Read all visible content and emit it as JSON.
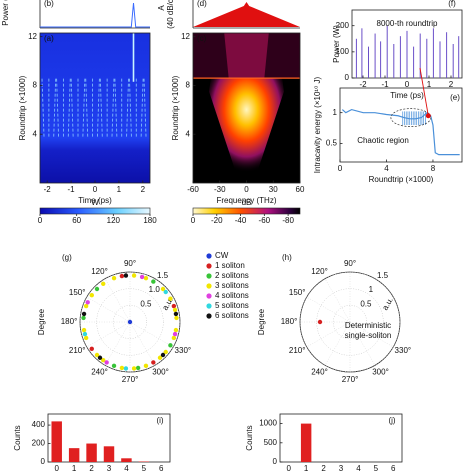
{
  "chart_data": [
    {
      "type": "heatmap",
      "label": "(a)",
      "top_label": "(b)",
      "top_ylabel": "Power (",
      "xlabel": "Time (ps)",
      "ylabel": "Roundtrip (×1000)",
      "xlim": [
        -2.3,
        2.3
      ],
      "xticks": [
        -2,
        -1,
        0,
        1,
        2
      ],
      "ylim": [
        0,
        12.3
      ],
      "yticks": [
        4,
        8,
        12
      ],
      "colorbar": {
        "lim": [
          0,
          180
        ],
        "ticks": [
          0,
          60,
          120,
          180
        ],
        "unit": "W"
      }
    },
    {
      "type": "heatmap",
      "label": "(c)",
      "top_label": "(d)",
      "top_ylabel": "A",
      "top_ylabel2": "(40 dB/c",
      "xlabel": "Frequency (THz)",
      "ylabel": "Roundtrip (×1000)",
      "xlim": [
        -60,
        60
      ],
      "xticks": [
        -60,
        -30,
        0,
        30,
        60
      ],
      "ylim": [
        0,
        12.3
      ],
      "yticks": [
        4,
        8,
        12
      ],
      "colorbar": {
        "lim": [
          0,
          -90
        ],
        "ticks": [
          0,
          -20,
          -40,
          -60,
          -80
        ],
        "unit": "dB"
      }
    },
    {
      "type": "spikes",
      "label": "(f)",
      "annotation": "8000-th roundtrip",
      "xlabel": "Time (ps)",
      "ylabel": "Power (W)",
      "xlim": [
        -2.5,
        2.5
      ],
      "xticks": [
        -2,
        -1,
        0,
        1,
        2
      ],
      "ylim": [
        0,
        260
      ],
      "yticks": [
        0,
        100,
        200
      ],
      "color": "#6a4fc8",
      "x": [
        -2.3,
        -2.05,
        -1.75,
        -1.45,
        -1.2,
        -0.9,
        -0.6,
        -0.3,
        0,
        0.3,
        0.6,
        0.9,
        1.2,
        1.5,
        1.8,
        2.1,
        2.35
      ],
      "values": [
        150,
        190,
        120,
        170,
        140,
        200,
        130,
        160,
        180,
        120,
        170,
        150,
        190,
        140,
        175,
        130,
        160
      ]
    },
    {
      "type": "line",
      "label": "(e)",
      "annotation": "Chaotic region",
      "xlabel": "Roundtrip (×1000)",
      "ylabel": "Intracavity energy (×10¹⁰ J)",
      "xlim": [
        0,
        10.5
      ],
      "xticks": [
        0,
        4,
        8
      ],
      "ylim": [
        0.2,
        1.4
      ],
      "yticks": [
        0.5,
        1
      ],
      "color": "#4a90d9",
      "x": [
        0.2,
        0.5,
        1,
        2,
        3,
        4,
        5,
        5.5,
        6,
        6.5,
        7,
        7.5,
        7.8,
        8,
        8.2,
        8.5,
        10.3
      ],
      "values": [
        1.05,
        1.0,
        1.05,
        1.0,
        1.0,
        0.97,
        0.95,
        0.92,
        0.9,
        0.9,
        0.92,
        1.0,
        0.95,
        0.8,
        0.35,
        0.32,
        0.32
      ]
    },
    {
      "type": "polar",
      "label": "(g)",
      "ylabel": "Degree",
      "runit": "a.u.",
      "rlim": [
        0,
        1.5
      ],
      "rticks": [
        0.5,
        {
          "value": 1,
          "label": "1.0"
        },
        {
          "value": 1.5,
          "label": "1.5"
        }
      ],
      "thetaticks": [
        {
          "value": 90,
          "label": "90°"
        },
        {
          "value": 120,
          "label": "120°"
        },
        {
          "value": 150,
          "label": "150°"
        },
        {
          "value": 180,
          "label": "180°"
        },
        {
          "value": 210,
          "label": "210°"
        },
        {
          "value": 240,
          "label": "240°"
        },
        {
          "value": 270,
          "label": "270°"
        },
        {
          "value": 300,
          "label": "300°"
        },
        {
          "value": 330,
          "label": "330°"
        }
      ],
      "series": [
        {
          "name": "CW",
          "color": "#1f3bd6",
          "theta": [
            0
          ],
          "r": [
            0
          ]
        },
        {
          "name": "1 soliton",
          "color": "#d62020",
          "theta": [
            100,
            215,
            300,
            20
          ],
          "r": [
            1.4,
            1.4,
            1.4,
            1.4
          ]
        },
        {
          "name": "2 solitons",
          "color": "#38c438",
          "theta": [
            135,
            175,
            250,
            330,
            60,
            280
          ],
          "r": [
            1.4,
            1.4,
            1.4,
            1.4,
            1.4,
            1.4
          ]
        },
        {
          "name": "3 solitons",
          "color": "#f2e600",
          "theta": [
            5,
            15,
            30,
            45,
            70,
            85,
            110,
            125,
            145,
            160,
            190,
            200,
            225,
            235,
            260,
            275,
            290,
            310,
            320,
            340,
            350
          ],
          "r": [
            1.4,
            1.4,
            1.4,
            1.4,
            1.4,
            1.4,
            1.4,
            1.4,
            1.4,
            1.4,
            1.4,
            1.4,
            1.4,
            1.4,
            1.4,
            1.4,
            1.4,
            1.4,
            1.4,
            1.4,
            1.4
          ]
        },
        {
          "name": "4 solitons",
          "color": "#e040e0",
          "theta": [
            155,
            240,
            345,
            75
          ],
          "r": [
            1.4,
            1.4,
            1.4,
            1.4
          ]
        },
        {
          "name": "5 solitons",
          "color": "#30d8e0",
          "theta": [
            195,
            265,
            40
          ],
          "r": [
            1.4,
            1.4,
            1.4
          ]
        },
        {
          "name": "6 solitons",
          "color": "#111111",
          "theta": [
            170,
            230,
            315,
            95,
            10
          ],
          "r": [
            1.4,
            1.4,
            1.4,
            1.4,
            1.4
          ]
        }
      ]
    },
    {
      "type": "polar",
      "label": "(h)",
      "ylabel": "Degree",
      "runit": "a.u.",
      "rlim": [
        0,
        1.5
      ],
      "rticks": [
        0.5,
        1,
        1.5
      ],
      "annotation": [
        "Deterministic",
        "single-soliton"
      ],
      "thetaticks": [
        {
          "value": 90,
          "label": "90°"
        },
        {
          "value": 120,
          "label": "120°"
        },
        {
          "value": 150,
          "label": "150°"
        },
        {
          "value": 180,
          "label": "180°"
        },
        {
          "value": 210,
          "label": "210°"
        },
        {
          "value": 240,
          "label": "240°"
        },
        {
          "value": 270,
          "label": "270°"
        },
        {
          "value": 300,
          "label": "300°"
        },
        {
          "value": 330,
          "label": "330°"
        }
      ],
      "series": [
        {
          "color": "#d62020",
          "theta": [
            180
          ],
          "r": [
            0.9
          ]
        }
      ]
    },
    {
      "type": "bar",
      "label": "(i)",
      "ylabel": "Counts",
      "categories": [
        "0",
        "1",
        "2",
        "3",
        "4",
        "5",
        "6"
      ],
      "values": [
        440,
        150,
        200,
        170,
        40,
        5,
        0
      ],
      "color": "#e02020",
      "ylim": [
        0,
        520
      ],
      "yticks": [
        0,
        200,
        400
      ]
    },
    {
      "type": "bar",
      "label": "(j)",
      "ylabel": "Counts",
      "categories": [
        "0",
        "1",
        "2",
        "3",
        "4",
        "5",
        "6"
      ],
      "values": [
        0,
        1000,
        0,
        0,
        0,
        0,
        0
      ],
      "color": "#e02020",
      "ylim": [
        0,
        1250
      ],
      "yticks": [
        0,
        500,
        1000
      ]
    }
  ]
}
